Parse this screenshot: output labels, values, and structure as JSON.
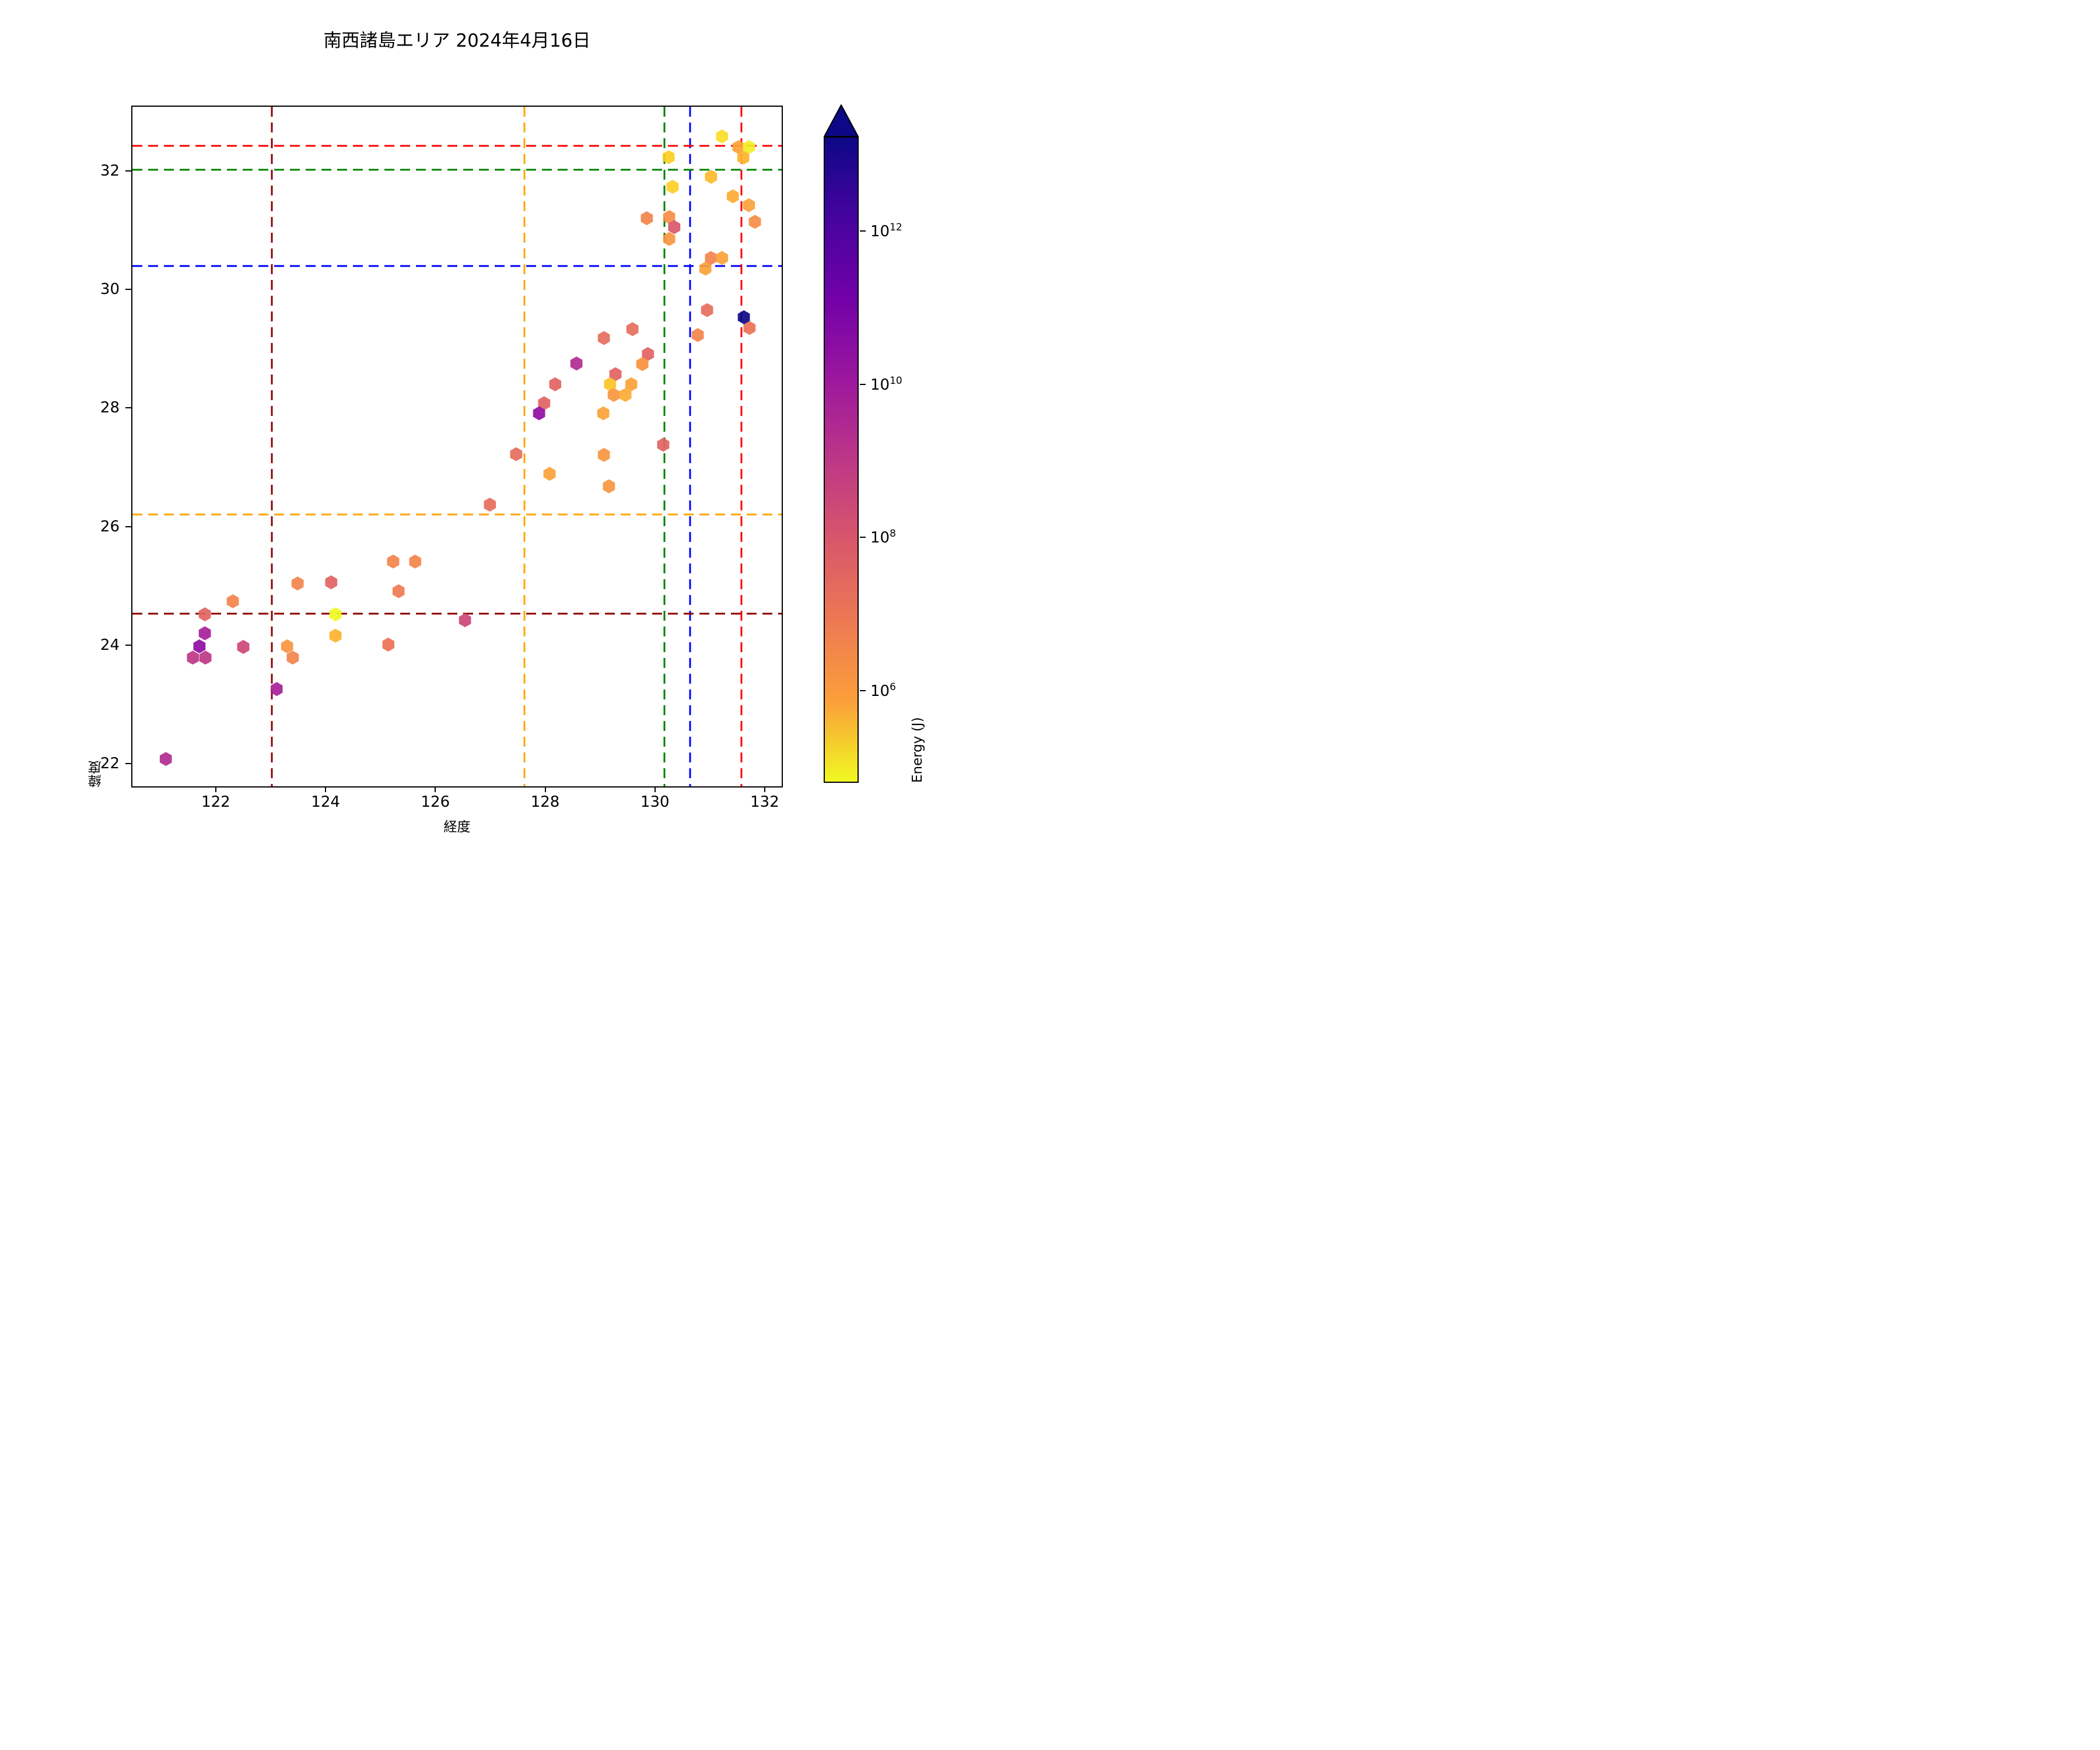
{
  "title": "南西諸島エリア 2024年4月16日",
  "chart_data": {
    "type": "scatter",
    "marker": "hexagon",
    "title": "南西諸島エリア 2024年4月16日",
    "xlabel": "経度",
    "ylabel": "緯度",
    "xlim": [
      120.46,
      132.33
    ],
    "ylim": [
      21.6,
      33.1
    ],
    "xticks": [
      122,
      124,
      126,
      128,
      130,
      132
    ],
    "yticks": [
      22,
      24,
      26,
      28,
      30,
      32
    ],
    "grid": false,
    "colorbar": {
      "label": "Energy (J)",
      "scale": "log",
      "tick_exponents": [
        12,
        10,
        8,
        6
      ],
      "colormap": "plasma_r",
      "vmin_exp": 4.8,
      "vmax_exp": 13.23,
      "extend": "max",
      "over_color": "#0d0887",
      "gradient_top_to_bottom": [
        "#0d0887",
        "#46039f",
        "#7201a8",
        "#9c179e",
        "#bd3786",
        "#d8576b",
        "#ed7953",
        "#fb9f3a",
        "#f0f921"
      ]
    },
    "reference_lines": {
      "vertical": [
        {
          "lon": 123.0,
          "color": "#8b0000"
        },
        {
          "lon": 127.6,
          "color": "#ffa500"
        },
        {
          "lon": 130.15,
          "color": "#008000"
        },
        {
          "lon": 130.62,
          "color": "#0000ff"
        },
        {
          "lon": 131.55,
          "color": "#ff0000"
        }
      ],
      "horizontal": [
        {
          "lat": 32.44,
          "color": "#ff0000"
        },
        {
          "lat": 32.04,
          "color": "#008000"
        },
        {
          "lat": 30.41,
          "color": "#0000ff"
        },
        {
          "lat": 26.22,
          "color": "#ffa500"
        },
        {
          "lat": 24.55,
          "color": "#8b0000"
        }
      ]
    },
    "points": [
      {
        "lon": 121.07,
        "lat": 22.1,
        "color": "#b12a90",
        "energy_j": 6000000000.0
      },
      {
        "lon": 123.09,
        "lat": 23.28,
        "color": "#a62098",
        "energy_j": 20000000000.0
      },
      {
        "lon": 121.56,
        "lat": 23.81,
        "color": "#bd3786",
        "energy_j": 2500000000.0
      },
      {
        "lon": 121.79,
        "lat": 23.81,
        "color": "#bd3786",
        "energy_j": 2500000000.0
      },
      {
        "lon": 121.68,
        "lat": 24.0,
        "color": "#8f0da4",
        "energy_j": 50000000000.0
      },
      {
        "lon": 121.78,
        "lat": 24.22,
        "color": "#a62098",
        "energy_j": 20000000000.0
      },
      {
        "lon": 121.78,
        "lat": 24.54,
        "color": "#e16462",
        "energy_j": 150000000.0
      },
      {
        "lon": 122.29,
        "lat": 24.76,
        "color": "#f2844b",
        "energy_j": 20000000.0
      },
      {
        "lon": 122.48,
        "lat": 23.99,
        "color": "#cc4778",
        "energy_j": 1000000000.0
      },
      {
        "lon": 123.28,
        "lat": 24.0,
        "color": "#f89540",
        "energy_j": 8000000.0
      },
      {
        "lon": 123.38,
        "lat": 23.81,
        "color": "#f2844b",
        "energy_j": 20000000.0
      },
      {
        "lon": 123.47,
        "lat": 25.06,
        "color": "#f2844b",
        "energy_j": 20000000.0
      },
      {
        "lon": 124.08,
        "lat": 25.08,
        "color": "#e16462",
        "energy_j": 150000000.0
      },
      {
        "lon": 124.16,
        "lat": 24.54,
        "color": "#f0f921",
        "energy_j": 60000.0
      },
      {
        "lon": 124.16,
        "lat": 24.18,
        "color": "#fcb32c",
        "energy_j": 1600000.0
      },
      {
        "lon": 125.12,
        "lat": 24.03,
        "color": "#ec7156",
        "energy_j": 50000000.0
      },
      {
        "lon": 125.21,
        "lat": 25.43,
        "color": "#f2844b",
        "energy_j": 20000000.0
      },
      {
        "lon": 125.61,
        "lat": 25.43,
        "color": "#f2844b",
        "energy_j": 20000000.0
      },
      {
        "lon": 125.31,
        "lat": 24.93,
        "color": "#ef7852",
        "energy_j": 30000000.0
      },
      {
        "lon": 126.52,
        "lat": 24.44,
        "color": "#cc4778",
        "energy_j": 1000000000.0
      },
      {
        "lon": 126.97,
        "lat": 26.39,
        "color": "#e66c5c",
        "energy_j": 80000000.0
      },
      {
        "lon": 127.45,
        "lat": 27.24,
        "color": "#e66c5c",
        "energy_j": 80000000.0
      },
      {
        "lon": 128.06,
        "lat": 26.91,
        "color": "#fba238",
        "energy_j": 4500000.0
      },
      {
        "lon": 129.05,
        "lat": 27.23,
        "color": "#f89540",
        "energy_j": 8000000.0
      },
      {
        "lon": 129.14,
        "lat": 26.7,
        "color": "#f89540",
        "energy_j": 8000000.0
      },
      {
        "lon": 130.13,
        "lat": 27.4,
        "color": "#e16462",
        "energy_j": 150000000.0
      },
      {
        "lon": 128.16,
        "lat": 28.42,
        "color": "#e16462",
        "energy_j": 150000000.0
      },
      {
        "lon": 127.96,
        "lat": 28.1,
        "color": "#e16462",
        "energy_j": 150000000.0
      },
      {
        "lon": 127.87,
        "lat": 27.93,
        "color": "#8f0da4",
        "energy_j": 50000000000.0
      },
      {
        "lon": 128.55,
        "lat": 28.77,
        "color": "#b12a90",
        "energy_j": 6000000000.0
      },
      {
        "lon": 129.26,
        "lat": 28.59,
        "color": "#e16462",
        "energy_j": 150000000.0
      },
      {
        "lon": 129.16,
        "lat": 28.42,
        "color": "#fcc326",
        "energy_j": 700000.0
      },
      {
        "lon": 129.23,
        "lat": 28.24,
        "color": "#f89540",
        "energy_j": 8000000.0
      },
      {
        "lon": 129.44,
        "lat": 28.24,
        "color": "#fcab33",
        "energy_j": 2500000.0
      },
      {
        "lon": 129.55,
        "lat": 28.42,
        "color": "#fba238",
        "energy_j": 4500000.0
      },
      {
        "lon": 129.04,
        "lat": 27.93,
        "color": "#fba238",
        "energy_j": 4500000.0
      },
      {
        "lon": 129.85,
        "lat": 28.93,
        "color": "#e16462",
        "energy_j": 150000000.0
      },
      {
        "lon": 129.75,
        "lat": 28.76,
        "color": "#f9913d",
        "energy_j": 10000000.0
      },
      {
        "lon": 129.05,
        "lat": 29.2,
        "color": "#e66c5c",
        "energy_j": 80000000.0
      },
      {
        "lon": 129.57,
        "lat": 29.35,
        "color": "#e66c5c",
        "energy_j": 80000000.0
      },
      {
        "lon": 130.76,
        "lat": 29.25,
        "color": "#f2844b",
        "energy_j": 20000000.0
      },
      {
        "lon": 130.93,
        "lat": 29.67,
        "color": "#e66c5c",
        "energy_j": 80000000.0
      },
      {
        "lon": 131.7,
        "lat": 29.37,
        "color": "#ec7156",
        "energy_j": 50000000.0
      },
      {
        "lon": 131.6,
        "lat": 29.55,
        "color": "#0d0887",
        "energy_j": 20000000000000.0
      },
      {
        "lon": 130.9,
        "lat": 30.37,
        "color": "#fba238",
        "energy_j": 4500000.0
      },
      {
        "lon": 131.0,
        "lat": 30.55,
        "color": "#f2844b",
        "energy_j": 20000000.0
      },
      {
        "lon": 131.2,
        "lat": 30.55,
        "color": "#fba238",
        "energy_j": 4500000.0
      },
      {
        "lon": 129.83,
        "lat": 31.22,
        "color": "#f2844b",
        "energy_j": 20000000.0
      },
      {
        "lon": 130.24,
        "lat": 31.24,
        "color": "#f68d45",
        "energy_j": 12000000.0
      },
      {
        "lon": 130.33,
        "lat": 31.07,
        "color": "#d8576b",
        "energy_j": 400000000.0
      },
      {
        "lon": 130.24,
        "lat": 30.87,
        "color": "#f89540",
        "energy_j": 8000000.0
      },
      {
        "lon": 130.3,
        "lat": 31.75,
        "color": "#fcce25",
        "energy_j": 400000.0
      },
      {
        "lon": 130.23,
        "lat": 32.25,
        "color": "#fcce25",
        "energy_j": 400000.0
      },
      {
        "lon": 131.0,
        "lat": 31.92,
        "color": "#fdb82b",
        "energy_j": 1300000.0
      },
      {
        "lon": 131.4,
        "lat": 31.59,
        "color": "#fcab33",
        "energy_j": 2500000.0
      },
      {
        "lon": 131.69,
        "lat": 31.44,
        "color": "#fba238",
        "energy_j": 4500000.0
      },
      {
        "lon": 131.8,
        "lat": 31.16,
        "color": "#f68d45",
        "energy_j": 12000000.0
      },
      {
        "lon": 131.2,
        "lat": 32.6,
        "color": "#fadd26",
        "energy_j": 250000.0
      },
      {
        "lon": 131.5,
        "lat": 32.42,
        "color": "#fba238",
        "energy_j": 4500000.0
      },
      {
        "lon": 131.69,
        "lat": 32.42,
        "color": "#f3ee27",
        "energy_j": 120000.0
      },
      {
        "lon": 131.59,
        "lat": 32.24,
        "color": "#fcb32c",
        "energy_j": 1600000.0
      }
    ]
  }
}
